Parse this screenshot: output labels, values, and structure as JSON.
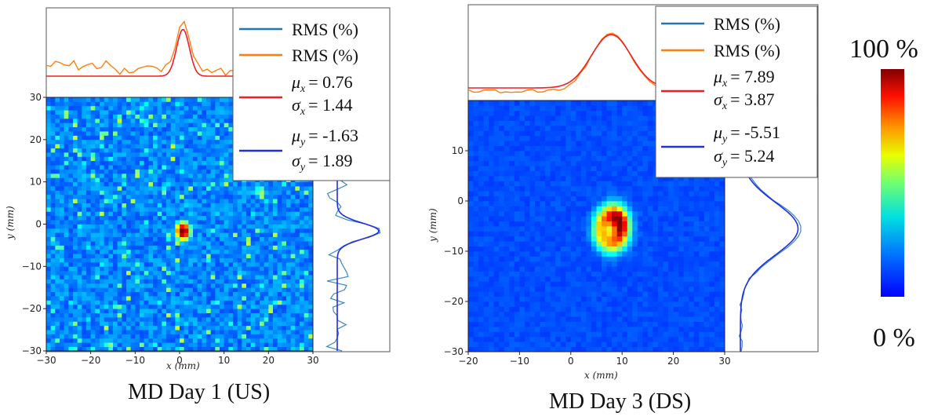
{
  "chart_data": [
    {
      "type": "heatmap",
      "caption": "MD Day 1 (US)",
      "xlabel_var": "x",
      "xlabel_unit": " (mm)",
      "ylabel_var": "y",
      "ylabel_unit": " (mm)",
      "xlim": [
        -30,
        30
      ],
      "ylim": [
        -30,
        30
      ],
      "xticks": [
        -30,
        -20,
        -10,
        0,
        10,
        20,
        30
      ],
      "yticks": [
        -30,
        -20,
        -10,
        0,
        10,
        20,
        30
      ],
      "beam": {
        "center": [
          0.76,
          -1.63
        ],
        "sigma": [
          1.44,
          1.89
        ],
        "noise": 0.28
      },
      "x_profile": {
        "mu": 0.76,
        "sigma": 1.44
      },
      "y_profile": {
        "mu": -1.63,
        "sigma": 1.89
      },
      "legend": [
        {
          "label": "RMS (%)",
          "color": "#1f77b4"
        },
        {
          "label": "RMS (%)",
          "color": "#ff7f0e"
        },
        {
          "mu_sym": "μ",
          "mu_sub": "x",
          "mu_val": "=  0.76",
          "sig_sym": "σ",
          "sig_sub": "x",
          "sig_val": "=  1.44",
          "color": "#ee2020"
        },
        {
          "mu_sym": "μ",
          "mu_sub": "y",
          "mu_val": "=  -1.63",
          "sig_sym": "σ",
          "sig_sub": "y",
          "sig_val": "=  1.89",
          "color": "#2030e0"
        }
      ]
    },
    {
      "type": "heatmap",
      "caption": "MD Day 3 (DS)",
      "xlabel_var": "x",
      "xlabel_unit": " (mm)",
      "ylabel_var": "y",
      "ylabel_unit": " (mm)",
      "xlim": [
        -20,
        30
      ],
      "ylim": [
        -30,
        20
      ],
      "xticks": [
        -20,
        -10,
        0,
        10,
        20,
        30
      ],
      "yticks": [
        -30,
        -20,
        -10,
        0,
        10
      ],
      "beam": {
        "center": [
          7.89,
          -5.51
        ],
        "sigma": [
          3.87,
          5.24
        ],
        "noise": 0.04
      },
      "x_profile": {
        "mu": 7.89,
        "sigma": 3.87
      },
      "y_profile": {
        "mu": -5.51,
        "sigma": 5.24
      },
      "legend": [
        {
          "label": "RMS (%)",
          "color": "#1f77b4"
        },
        {
          "label": "RMS (%)",
          "color": "#ff7f0e"
        },
        {
          "mu_sym": "μ",
          "mu_sub": "x",
          "mu_val": "=  7.89",
          "sig_sym": "σ",
          "sig_sub": "x",
          "sig_val": "=  3.87",
          "color": "#ee2020"
        },
        {
          "mu_sym": "μ",
          "mu_sub": "y",
          "mu_val": "=  -5.51",
          "sig_sym": "σ",
          "sig_sub": "y",
          "sig_val": "=  5.24",
          "color": "#2030e0"
        }
      ]
    }
  ],
  "colorbar": {
    "max_label": "100 %",
    "min_label": "0 %",
    "colormap": "jet"
  }
}
